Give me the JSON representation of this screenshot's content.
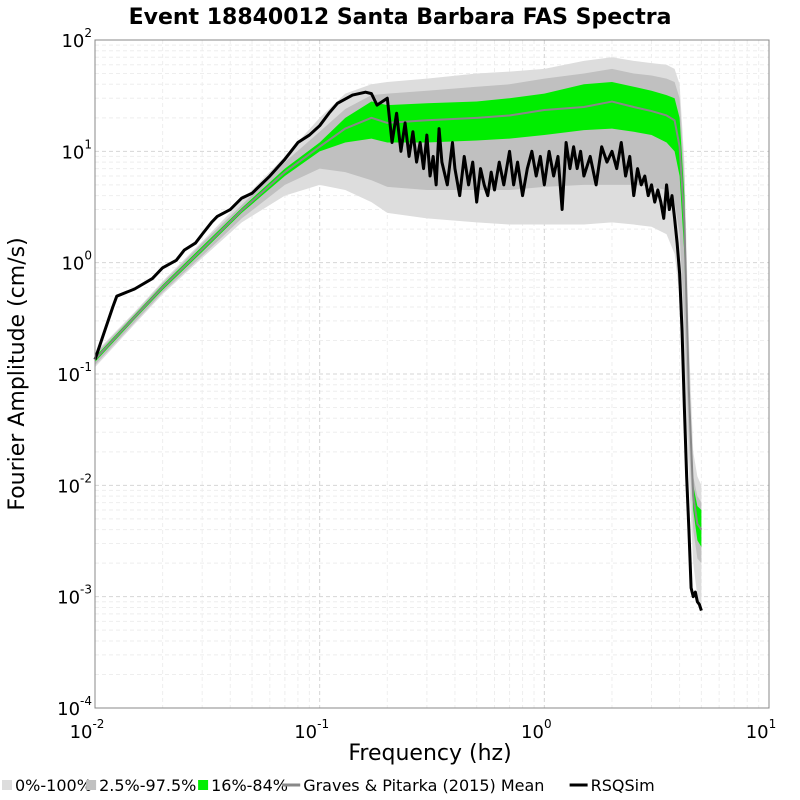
{
  "chart_data": {
    "type": "line",
    "title": "Event 18840012 Santa Barbara FAS Spectra",
    "xlabel": "Frequency (hz)",
    "ylabel": "Fourier Amplitude (cm/s)",
    "x_scale": "log",
    "y_scale": "log",
    "xlim": [
      0.01,
      10
    ],
    "ylim": [
      0.0001,
      100
    ],
    "x_ticks": [
      {
        "base": "10",
        "exp": "-2",
        "value": 0.01
      },
      {
        "base": "10",
        "exp": "-1",
        "value": 0.1
      },
      {
        "base": "10",
        "exp": "0",
        "value": 1
      },
      {
        "base": "10",
        "exp": "1",
        "value": 10
      }
    ],
    "y_ticks": [
      {
        "base": "10",
        "exp": "-4",
        "value": 0.0001
      },
      {
        "base": "10",
        "exp": "-3",
        "value": 0.001
      },
      {
        "base": "10",
        "exp": "-2",
        "value": 0.01
      },
      {
        "base": "10",
        "exp": "-1",
        "value": 0.1
      },
      {
        "base": "10",
        "exp": "0",
        "value": 1
      },
      {
        "base": "10",
        "exp": "1",
        "value": 10
      },
      {
        "base": "10",
        "exp": "2",
        "value": 100
      }
    ],
    "grid": true,
    "legend_position": "bottom",
    "bands": [
      {
        "name": "0%-100%",
        "color": "#dddddd",
        "x": [
          0.01,
          0.015,
          0.02,
          0.03,
          0.045,
          0.07,
          0.1,
          0.13,
          0.17,
          0.2,
          0.3,
          0.5,
          0.7,
          1.0,
          1.5,
          2.0,
          2.5,
          3.0,
          3.5,
          3.8,
          4.0,
          4.2,
          4.4,
          4.6,
          4.8,
          5.0
        ],
        "lower": [
          0.115,
          0.28,
          0.52,
          1.1,
          2.3,
          4.0,
          5.0,
          4.5,
          3.5,
          2.8,
          2.5,
          2.3,
          2.2,
          2.2,
          2.2,
          2.3,
          2.2,
          2.1,
          1.8,
          1.2,
          0.5,
          0.1,
          0.012,
          0.002,
          0.001,
          0.0007
        ],
        "upper": [
          0.155,
          0.36,
          0.68,
          1.55,
          3.6,
          9.0,
          20,
          33,
          40,
          42,
          45,
          50,
          52,
          55,
          65,
          70,
          65,
          62,
          60,
          55,
          40,
          8,
          0.2,
          0.02,
          0.012,
          0.01
        ]
      },
      {
        "name": "2.5%-97.5%",
        "color": "#c0c0c0",
        "x": [
          0.01,
          0.015,
          0.02,
          0.03,
          0.045,
          0.07,
          0.1,
          0.13,
          0.17,
          0.2,
          0.3,
          0.5,
          0.7,
          1.0,
          1.5,
          2.0,
          2.5,
          3.0,
          3.5,
          3.8,
          4.0,
          4.2,
          4.4,
          4.6,
          4.8,
          5.0
        ],
        "lower": [
          0.12,
          0.29,
          0.54,
          1.15,
          2.5,
          5.0,
          7.0,
          6.5,
          5.5,
          4.8,
          4.5,
          4.5,
          4.5,
          4.8,
          5.0,
          5.0,
          5.0,
          4.8,
          4.5,
          3.5,
          1.8,
          0.3,
          0.025,
          0.004,
          0.0022,
          0.002
        ],
        "upper": [
          0.15,
          0.35,
          0.66,
          1.5,
          3.3,
          8.0,
          15,
          24,
          32,
          33,
          35,
          38,
          40,
          45,
          50,
          55,
          50,
          48,
          45,
          42,
          30,
          6,
          0.1,
          0.012,
          0.008,
          0.007
        ]
      },
      {
        "name": "16%-84%",
        "color": "#00ee00",
        "x": [
          0.01,
          0.015,
          0.02,
          0.03,
          0.045,
          0.07,
          0.1,
          0.13,
          0.17,
          0.2,
          0.3,
          0.5,
          0.7,
          1.0,
          1.5,
          2.0,
          2.5,
          3.0,
          3.5,
          3.8,
          4.0,
          4.2,
          4.4,
          4.6,
          4.8,
          5.0
        ],
        "lower": [
          0.128,
          0.31,
          0.57,
          1.25,
          2.8,
          6.0,
          10,
          12,
          13,
          12,
          12,
          12.5,
          13,
          14,
          15.5,
          16,
          15,
          14,
          12,
          10,
          6,
          1.2,
          0.06,
          0.006,
          0.0032,
          0.0028
        ],
        "upper": [
          0.142,
          0.34,
          0.63,
          1.4,
          3.1,
          7.0,
          12,
          20,
          28,
          26,
          27,
          28,
          30,
          33,
          40,
          42,
          38,
          35,
          32,
          30,
          20,
          4,
          0.08,
          0.01,
          0.0065,
          0.006
        ]
      }
    ],
    "series": [
      {
        "name": "Graves & Pitarka (2015) Mean",
        "color": "#888888",
        "x": [
          0.01,
          0.015,
          0.02,
          0.03,
          0.045,
          0.07,
          0.1,
          0.13,
          0.17,
          0.2,
          0.3,
          0.5,
          0.7,
          1.0,
          1.5,
          2.0,
          2.5,
          3.0,
          3.5,
          3.8,
          4.0,
          4.2,
          4.4,
          4.6,
          4.8,
          5.0
        ],
        "values": [
          0.135,
          0.325,
          0.6,
          1.32,
          2.95,
          6.5,
          11,
          16,
          20,
          18,
          19,
          20,
          21,
          23.5,
          25,
          28,
          25,
          23,
          21,
          19,
          11,
          2.3,
          0.07,
          0.008,
          0.0045,
          0.004
        ]
      },
      {
        "name": "RSQSim",
        "color": "#000000",
        "x": [
          0.01,
          0.012,
          0.0125,
          0.015,
          0.018,
          0.02,
          0.023,
          0.025,
          0.028,
          0.03,
          0.033,
          0.035,
          0.04,
          0.045,
          0.05,
          0.06,
          0.07,
          0.08,
          0.09,
          0.1,
          0.11,
          0.12,
          0.14,
          0.16,
          0.17,
          0.18,
          0.2,
          0.21,
          0.22,
          0.23,
          0.24,
          0.25,
          0.26,
          0.27,
          0.28,
          0.29,
          0.3,
          0.31,
          0.32,
          0.33,
          0.34,
          0.35,
          0.37,
          0.39,
          0.4,
          0.42,
          0.44,
          0.46,
          0.48,
          0.5,
          0.52,
          0.54,
          0.56,
          0.58,
          0.6,
          0.63,
          0.66,
          0.7,
          0.73,
          0.76,
          0.8,
          0.84,
          0.88,
          0.92,
          0.96,
          1.0,
          1.05,
          1.1,
          1.15,
          1.2,
          1.25,
          1.3,
          1.35,
          1.4,
          1.45,
          1.5,
          1.6,
          1.7,
          1.8,
          1.9,
          2.0,
          2.1,
          2.2,
          2.3,
          2.4,
          2.5,
          2.6,
          2.7,
          2.8,
          2.9,
          3.0,
          3.1,
          3.2,
          3.3,
          3.4,
          3.5,
          3.6,
          3.7,
          3.8,
          3.9,
          4.0,
          4.1,
          4.2,
          4.3,
          4.4,
          4.5,
          4.6,
          4.7,
          4.8,
          4.9,
          5.0
        ],
        "values": [
          0.135,
          0.4,
          0.5,
          0.58,
          0.72,
          0.9,
          1.05,
          1.3,
          1.5,
          1.8,
          2.3,
          2.6,
          3.0,
          3.8,
          4.2,
          6.0,
          8.5,
          12,
          14,
          17,
          22,
          27,
          32,
          34,
          33,
          26,
          30,
          12,
          22,
          10,
          18,
          9,
          15,
          8,
          12,
          7,
          14,
          6,
          9,
          5,
          16,
          8,
          5,
          12,
          7,
          4,
          9,
          5,
          8,
          3.5,
          7,
          5,
          4,
          6.5,
          4.5,
          8,
          5,
          10,
          5,
          8,
          4,
          7,
          10,
          6,
          9,
          5,
          10,
          6,
          9,
          3,
          12,
          7,
          11,
          7,
          10,
          6,
          9,
          5,
          11,
          8,
          10,
          7,
          12,
          6,
          9,
          4,
          7,
          5,
          6,
          4,
          5,
          3.5,
          4.5,
          3.5,
          2.5,
          5,
          3,
          4,
          2.5,
          1.5,
          0.8,
          0.25,
          0.05,
          0.012,
          0.004,
          0.0012,
          0.001,
          0.0011,
          0.0009,
          0.00085,
          0.00075
        ]
      }
    ]
  },
  "legend": {
    "items": [
      {
        "label": "0%-100%",
        "color": "#dddddd",
        "kind": "square"
      },
      {
        "label": "2.5%-97.5%",
        "color": "#c0c0c0",
        "kind": "square"
      },
      {
        "label": "16%-84%",
        "color": "#00ee00",
        "kind": "square"
      },
      {
        "label": "Graves & Pitarka (2015) Mean",
        "color": "#888888",
        "kind": "line"
      },
      {
        "label": "RSQSim",
        "color": "#000000",
        "kind": "line"
      }
    ]
  }
}
